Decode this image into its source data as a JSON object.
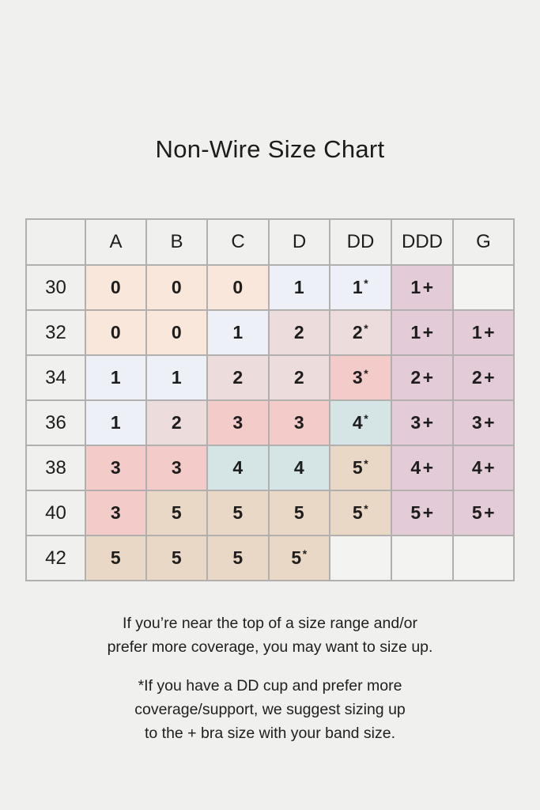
{
  "page": {
    "title": "Non-Wire Size Chart",
    "background_color": "#f0f0ee",
    "text_color": "#1d1d1d",
    "grid_line_color": "#b1b0ae"
  },
  "colors": {
    "peach": "#f8e7da",
    "blue": "#edf1f7",
    "pink": "#ecdcdb",
    "salmon": "#f3cbc8",
    "teal": "#d5e4e5",
    "tan": "#e9d8c6",
    "mauve": "#e3ccd7",
    "none": "#f3f3f1"
  },
  "table": {
    "columns": [
      "",
      "A",
      "B",
      "C",
      "D",
      "DD",
      "DDD",
      "G"
    ],
    "rows": [
      {
        "band": "30",
        "cells": [
          {
            "value": "0",
            "suffix": "",
            "color": "peach"
          },
          {
            "value": "0",
            "suffix": "",
            "color": "peach"
          },
          {
            "value": "0",
            "suffix": "",
            "color": "peach"
          },
          {
            "value": "1",
            "suffix": "",
            "color": "blue"
          },
          {
            "value": "1",
            "suffix": "*",
            "color": "blue"
          },
          {
            "value": "1",
            "suffix": "+",
            "color": "mauve"
          },
          {
            "value": "",
            "suffix": "",
            "color": "none"
          }
        ]
      },
      {
        "band": "32",
        "cells": [
          {
            "value": "0",
            "suffix": "",
            "color": "peach"
          },
          {
            "value": "0",
            "suffix": "",
            "color": "peach"
          },
          {
            "value": "1",
            "suffix": "",
            "color": "blue"
          },
          {
            "value": "2",
            "suffix": "",
            "color": "pink"
          },
          {
            "value": "2",
            "suffix": "*",
            "color": "pink"
          },
          {
            "value": "1",
            "suffix": "+",
            "color": "mauve"
          },
          {
            "value": "1",
            "suffix": "+",
            "color": "mauve"
          }
        ]
      },
      {
        "band": "34",
        "cells": [
          {
            "value": "1",
            "suffix": "",
            "color": "blue"
          },
          {
            "value": "1",
            "suffix": "",
            "color": "blue"
          },
          {
            "value": "2",
            "suffix": "",
            "color": "pink"
          },
          {
            "value": "2",
            "suffix": "",
            "color": "pink"
          },
          {
            "value": "3",
            "suffix": "*",
            "color": "salmon"
          },
          {
            "value": "2",
            "suffix": "+",
            "color": "mauve"
          },
          {
            "value": "2",
            "suffix": "+",
            "color": "mauve"
          }
        ]
      },
      {
        "band": "36",
        "cells": [
          {
            "value": "1",
            "suffix": "",
            "color": "blue"
          },
          {
            "value": "2",
            "suffix": "",
            "color": "pink"
          },
          {
            "value": "3",
            "suffix": "",
            "color": "salmon"
          },
          {
            "value": "3",
            "suffix": "",
            "color": "salmon"
          },
          {
            "value": "4",
            "suffix": "*",
            "color": "teal"
          },
          {
            "value": "3",
            "suffix": "+",
            "color": "mauve"
          },
          {
            "value": "3",
            "suffix": "+",
            "color": "mauve"
          }
        ]
      },
      {
        "band": "38",
        "cells": [
          {
            "value": "3",
            "suffix": "",
            "color": "salmon"
          },
          {
            "value": "3",
            "suffix": "",
            "color": "salmon"
          },
          {
            "value": "4",
            "suffix": "",
            "color": "teal"
          },
          {
            "value": "4",
            "suffix": "",
            "color": "teal"
          },
          {
            "value": "5",
            "suffix": "*",
            "color": "tan"
          },
          {
            "value": "4",
            "suffix": "+",
            "color": "mauve"
          },
          {
            "value": "4",
            "suffix": "+",
            "color": "mauve"
          }
        ]
      },
      {
        "band": "40",
        "cells": [
          {
            "value": "3",
            "suffix": "",
            "color": "salmon"
          },
          {
            "value": "5",
            "suffix": "",
            "color": "tan"
          },
          {
            "value": "5",
            "suffix": "",
            "color": "tan"
          },
          {
            "value": "5",
            "suffix": "",
            "color": "tan"
          },
          {
            "value": "5",
            "suffix": "*",
            "color": "tan"
          },
          {
            "value": "5",
            "suffix": "+",
            "color": "mauve"
          },
          {
            "value": "5",
            "suffix": "+",
            "color": "mauve"
          }
        ]
      },
      {
        "band": "42",
        "cells": [
          {
            "value": "5",
            "suffix": "",
            "color": "tan"
          },
          {
            "value": "5",
            "suffix": "",
            "color": "tan"
          },
          {
            "value": "5",
            "suffix": "",
            "color": "tan"
          },
          {
            "value": "5",
            "suffix": "*",
            "color": "tan"
          },
          {
            "value": "",
            "suffix": "",
            "color": "none"
          },
          {
            "value": "",
            "suffix": "",
            "color": "none"
          },
          {
            "value": "",
            "suffix": "",
            "color": "none"
          }
        ]
      }
    ]
  },
  "notes": {
    "note1": "If you’re near the top of a size range and/or\nprefer more coverage, you may want to size up.",
    "note2": "*If you have a DD cup and prefer more\ncoverage/support, we suggest sizing up\nto the + bra size with your band size."
  },
  "chart_data": {
    "type": "table",
    "title": "Non-Wire Size Chart",
    "columns": [
      "band",
      "A",
      "B",
      "C",
      "D",
      "DD",
      "DDD",
      "G"
    ],
    "rows": [
      [
        "30",
        "0",
        "0",
        "0",
        "1",
        "1*",
        "1+",
        ""
      ],
      [
        "32",
        "0",
        "0",
        "1",
        "2",
        "2*",
        "1+",
        "1+"
      ],
      [
        "34",
        "1",
        "1",
        "2",
        "2",
        "3*",
        "2+",
        "2+"
      ],
      [
        "36",
        "1",
        "2",
        "3",
        "3",
        "4*",
        "3+",
        "3+"
      ],
      [
        "38",
        "3",
        "3",
        "4",
        "4",
        "5*",
        "4+",
        "4+"
      ],
      [
        "40",
        "3",
        "5",
        "5",
        "5",
        "5*",
        "5+",
        "5+"
      ],
      [
        "42",
        "5",
        "5",
        "5",
        "5*",
        "",
        "",
        ""
      ]
    ],
    "footnotes": [
      "If you’re near the top of a size range and/or prefer more coverage, you may want to size up.",
      "*If you have a DD cup and prefer more coverage/support, we suggest sizing up to the + bra size with your band size."
    ]
  }
}
